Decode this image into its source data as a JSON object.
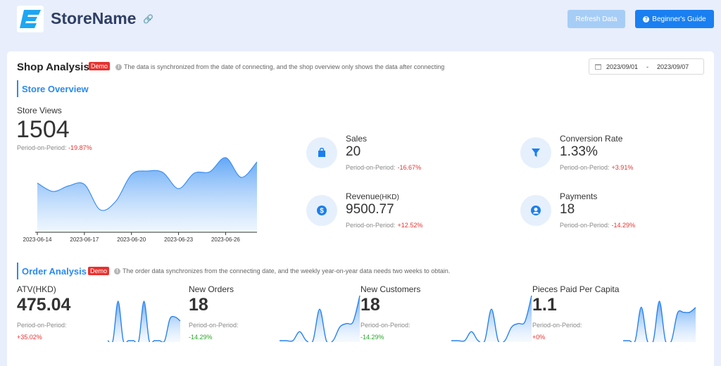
{
  "header": {
    "store_name": "StoreName",
    "refresh_label": "Refresh Data",
    "guide_label": "Beginner's Guide"
  },
  "shop": {
    "title": "Shop Analysis",
    "demo_badge": "Demo",
    "note": "The data is synchronized from the date of connecting, and the shop overview only shows the data after connecting",
    "date_start": "2023/09/01",
    "date_sep": "-",
    "date_end": "2023/09/07"
  },
  "overview": {
    "title": "Store Overview",
    "store_views_label": "Store Views",
    "store_views_value": "1504",
    "store_views_pop_label": "Period-on-Period:",
    "store_views_pop_value": "-19.87%",
    "kpis": [
      {
        "label": "Sales",
        "value": "20",
        "pop_label": "Period-on-Period:",
        "pop_value": "-16.67%",
        "icon": "shopping-bag-icon"
      },
      {
        "label": "Conversion Rate",
        "value": "1.33%",
        "pop_label": "Period-on-Period:",
        "pop_value": "+3.91%",
        "icon": "funnel-icon"
      },
      {
        "label": "Revenue",
        "unit": "(HKD)",
        "value": "9500.77",
        "pop_label": "Period-on-Period:",
        "pop_value": "+12.52%",
        "icon": "dollar-icon"
      },
      {
        "label": "Payments",
        "value": "18",
        "pop_label": "Period-on-Period:",
        "pop_value": "-14.29%",
        "icon": "user-icon"
      }
    ]
  },
  "orders": {
    "title": "Order Analysis",
    "demo_badge": "Demo",
    "note": "The order data synchronizes from the connecting date, and the weekly year-on-year data needs two weeks to obtain.",
    "metrics": [
      {
        "label": "ATV(HKD)",
        "value": "475.04",
        "pop_label": "Period-on-Period:",
        "pop_value": "+35.02%",
        "trend": "up"
      },
      {
        "label": "New Orders",
        "value": "18",
        "pop_label": "Period-on-Period:",
        "pop_value": "-14.29%",
        "trend": "down"
      },
      {
        "label": "New Customers",
        "value": "18",
        "pop_label": "Period-on-Period:",
        "pop_value": "-14.29%",
        "trend": "down"
      },
      {
        "label": "Pieces Paid Per Capita",
        "value": "1.1",
        "pop_label": "Period-on-Period:",
        "pop_value": "+0%",
        "trend": "up"
      }
    ]
  },
  "colors": {
    "accent": "#2a8aef",
    "negative": "#e8322f",
    "positive_trend": "#e8322f",
    "negative_trend": "#2aa52a"
  },
  "chart_data": [
    {
      "type": "area",
      "title": "",
      "x": [
        "2023-06-14",
        "2023-06-15",
        "2023-06-16",
        "2023-06-17",
        "2023-06-18",
        "2023-06-19",
        "2023-06-20",
        "2023-06-21",
        "2023-06-22",
        "2023-06-23",
        "2023-06-24",
        "2023-06-25",
        "2023-06-26",
        "2023-06-27",
        "2023-06-28"
      ],
      "tick_labels": [
        "2023-06-14",
        "2023-06-17",
        "2023-06-20",
        "2023-06-23",
        "2023-06-26"
      ],
      "values": [
        70,
        58,
        66,
        68,
        32,
        44,
        82,
        87,
        85,
        62,
        84,
        86,
        106,
        78,
        100
      ],
      "ylim": [
        0,
        115
      ],
      "grid": false
    },
    {
      "type": "area",
      "values": [
        0,
        0,
        1,
        0,
        0,
        0,
        0,
        1,
        0,
        0,
        0,
        0,
        0.55,
        0.6,
        0.5
      ]
    },
    {
      "type": "area",
      "values": [
        0,
        0,
        0,
        0.2,
        0,
        0,
        0.7,
        0,
        0,
        0.3,
        0.38,
        0.42,
        1
      ]
    },
    {
      "type": "area",
      "values": [
        0,
        0,
        0,
        0.2,
        0,
        0,
        0.7,
        0,
        0,
        0.3,
        0.38,
        0.42,
        1
      ]
    },
    {
      "type": "area",
      "values": [
        0,
        0,
        0,
        0.85,
        0,
        0,
        1,
        0,
        0,
        0.7,
        0.72,
        0.72,
        0.84
      ]
    }
  ]
}
